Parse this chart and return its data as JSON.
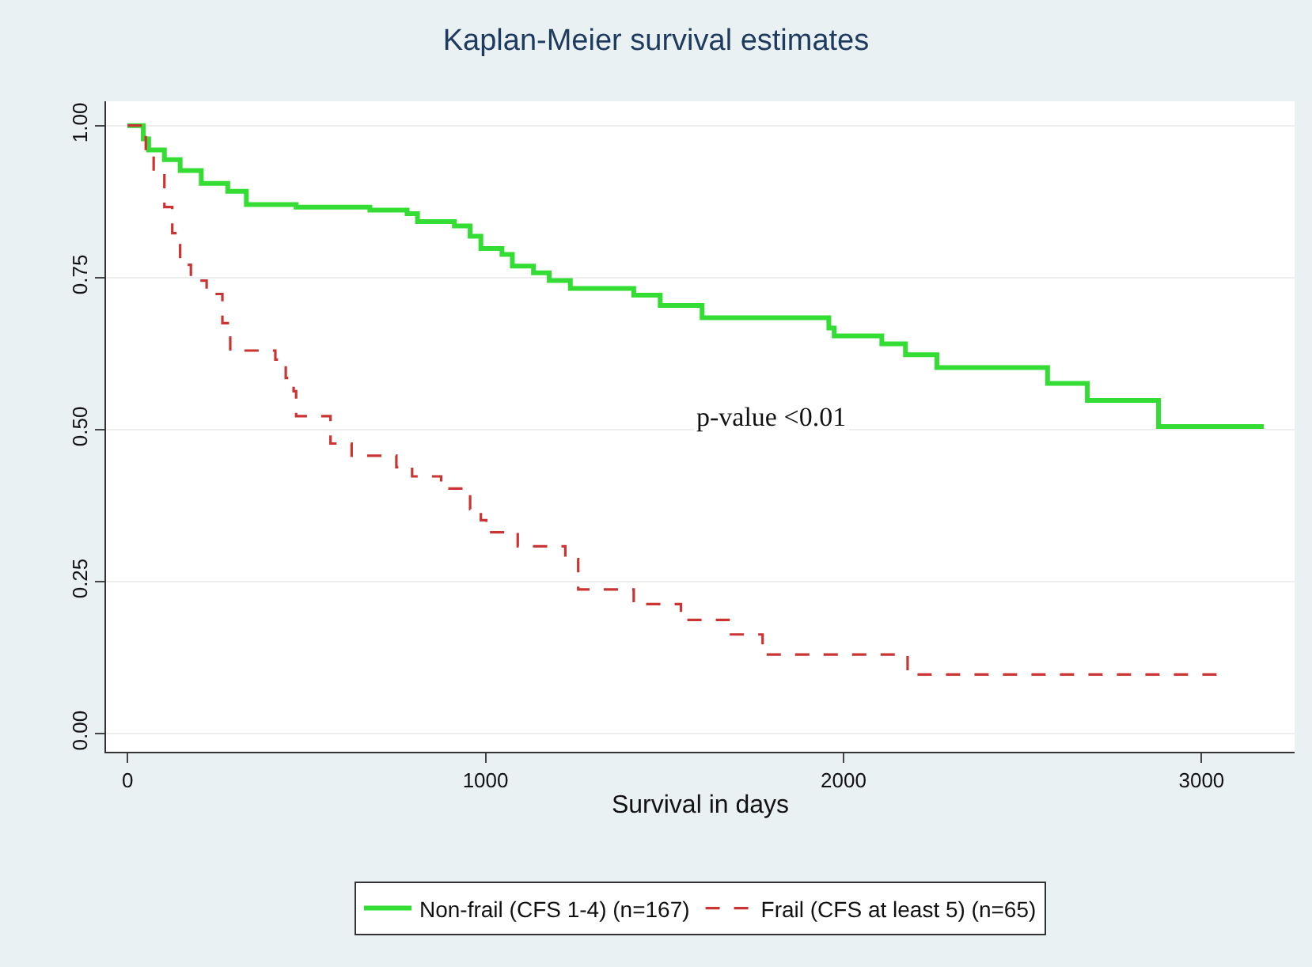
{
  "chart_data": {
    "type": "step",
    "title": "Kaplan-Meier survival estimates",
    "xlabel": "Survival in days",
    "xlim": [
      -60,
      3260
    ],
    "xticks": [
      0,
      1000,
      2000,
      3000
    ],
    "ylim": [
      -0.03,
      1.04
    ],
    "yticks": [
      {
        "value": 0,
        "label": "0.00"
      },
      {
        "value": 0.25,
        "label": "0.25"
      },
      {
        "value": 0.5,
        "label": "0.50"
      },
      {
        "value": 0.75,
        "label": "0.75"
      },
      {
        "value": 1,
        "label": "1.00"
      }
    ],
    "grid": "y",
    "legend": "bottom",
    "marker": "none",
    "annotations": [
      "p-value <0.01"
    ],
    "series": [
      {
        "name": "Non-frail (CFS 1-4) (n=167)",
        "color": "#33dd33",
        "line_style": "solid",
        "x": [
          0,
          44,
          59,
          103,
          147,
          206,
          280,
          332,
          471,
          677,
          781,
          810,
          913,
          957,
          987,
          1046,
          1075,
          1134,
          1178,
          1237,
          1414,
          1488,
          1605,
          1959,
          1974,
          2107,
          2173,
          2261,
          2570,
          2681,
          2880,
          3174
        ],
        "values": [
          1,
          0.978,
          0.96,
          0.944,
          0.926,
          0.905,
          0.892,
          0.87,
          0.866,
          0.861,
          0.855,
          0.842,
          0.835,
          0.818,
          0.798,
          0.788,
          0.769,
          0.758,
          0.745,
          0.732,
          0.721,
          0.704,
          0.684,
          0.667,
          0.654,
          0.641,
          0.623,
          0.602,
          0.576,
          0.548,
          0.505,
          0.505
        ]
      },
      {
        "name": "Frail (CFS at least 5) (n=65)",
        "color": "#cc3333",
        "line_style": "dashed",
        "x": [
          0,
          51,
          73,
          103,
          125,
          147,
          177,
          221,
          265,
          287,
          413,
          442,
          464,
          471,
          567,
          626,
          751,
          795,
          876,
          957,
          987,
          1002,
          1090,
          1223,
          1259,
          1414,
          1546,
          1679,
          1774,
          2179,
          3056
        ],
        "values": [
          1,
          0.952,
          0.918,
          0.866,
          0.823,
          0.771,
          0.745,
          0.723,
          0.675,
          0.63,
          0.615,
          0.585,
          0.563,
          0.522,
          0.477,
          0.457,
          0.438,
          0.423,
          0.403,
          0.369,
          0.351,
          0.331,
          0.308,
          0.287,
          0.237,
          0.213,
          0.187,
          0.163,
          0.13,
          0.097,
          0.097
        ]
      }
    ]
  }
}
